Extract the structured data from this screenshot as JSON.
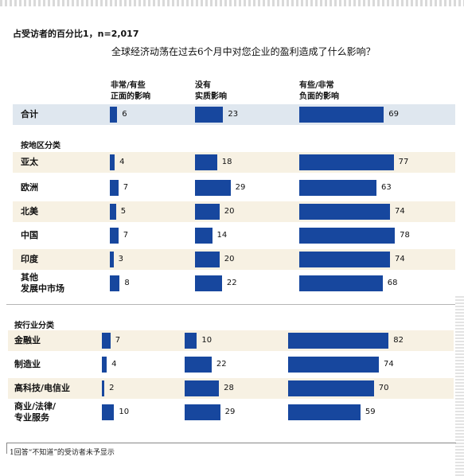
{
  "subtitle": "占受访者的百分比1，n=2,017",
  "question": "全球经济动荡在过去6个月中对您企业的盈利造成了什么影响？",
  "footnote": "1回答“不知道”的受访者未予显示",
  "colors": {
    "bar": "#17479e",
    "band_blue": "#dfe7ef",
    "band_beige": "#f7f1e3"
  },
  "chart_data": {
    "type": "bar",
    "orientation": "horizontal",
    "unit": "%",
    "series": [
      {
        "name": "非常/有些\n正面的影响"
      },
      {
        "name": "没有\n实质影响"
      },
      {
        "name": "有些/非常\n负面的影响"
      }
    ],
    "total": {
      "label": "合计",
      "values": [
        6,
        23,
        69
      ]
    },
    "groups": [
      {
        "title": "按地区分类",
        "rows": [
          {
            "label": "亚太",
            "values": [
              4,
              18,
              77
            ]
          },
          {
            "label": "欧洲",
            "values": [
              7,
              29,
              63
            ]
          },
          {
            "label": "北美",
            "values": [
              5,
              20,
              74
            ]
          },
          {
            "label": "中国",
            "values": [
              7,
              14,
              78
            ]
          },
          {
            "label": "印度",
            "values": [
              3,
              20,
              74
            ]
          },
          {
            "label": "其他\n发展中市场",
            "values": [
              8,
              22,
              68
            ]
          }
        ]
      },
      {
        "title": "按行业分类",
        "rows": [
          {
            "label": "金融业",
            "values": [
              7,
              10,
              82
            ]
          },
          {
            "label": "制造业",
            "values": [
              4,
              22,
              74
            ]
          },
          {
            "label": "高科技/电信业",
            "values": [
              2,
              28,
              70
            ]
          },
          {
            "label": "商业/法律/\n专业服务",
            "values": [
              10,
              29,
              59
            ]
          }
        ]
      }
    ]
  }
}
